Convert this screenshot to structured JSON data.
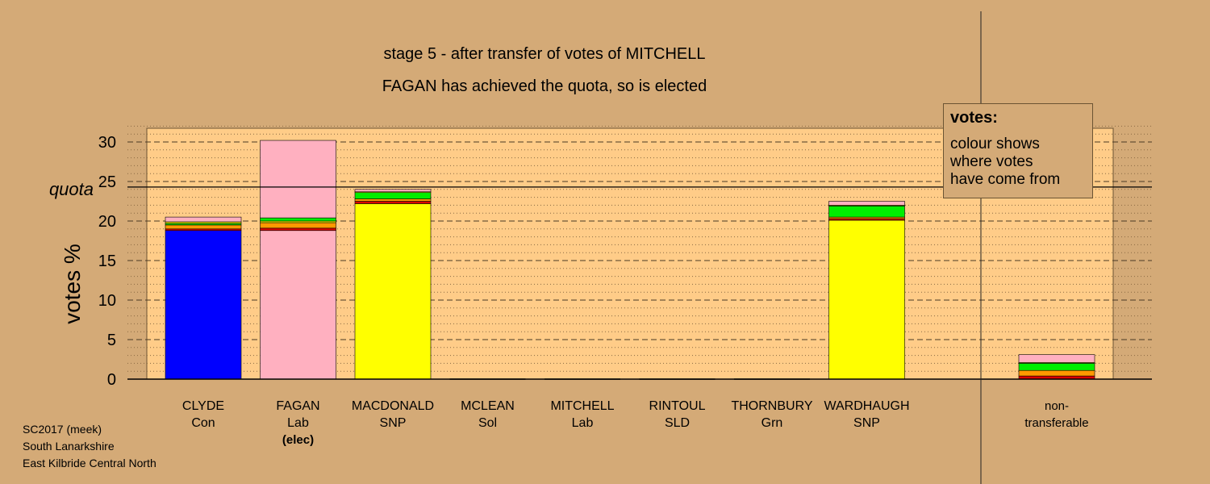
{
  "header": {
    "stage_line": "stage 5 - after transfer of votes of MITCHELL",
    "status_line": "FAGAN has achieved the quota, so is elected"
  },
  "legend": {
    "title": "votes:",
    "lines": [
      "colour shows",
      "where votes",
      "have come from"
    ]
  },
  "footer": {
    "lines": [
      "SC2017 (meek)",
      "South Lanarkshire",
      "East Kilbride Central North"
    ]
  },
  "chart_data": {
    "type": "bar",
    "stacked": true,
    "ylabel": "votes %",
    "ylim": [
      0,
      32
    ],
    "yticks": [
      0,
      5,
      10,
      15,
      20,
      25,
      30
    ],
    "quota": 24.3,
    "quota_label": "quota",
    "grid": true,
    "candidates": [
      {
        "name": "CLYDE",
        "party": "Con",
        "note": "",
        "segments": [
          {
            "color": "#0000ff",
            "value": 18.8
          },
          {
            "color": "#dd0000",
            "value": 0.2
          },
          {
            "color": "#ff9900",
            "value": 0.5
          },
          {
            "color": "#00ee00",
            "value": 0.2
          },
          {
            "color": "#ffff00",
            "value": 0.2
          },
          {
            "color": "#ffb0c0",
            "value": 0.6
          }
        ]
      },
      {
        "name": "FAGAN",
        "party": "Lab",
        "note": "(elec)",
        "segments": [
          {
            "color": "#ffb0c0",
            "value": 18.8
          },
          {
            "color": "#dd0000",
            "value": 0.3
          },
          {
            "color": "#ff9900",
            "value": 0.7
          },
          {
            "color": "#ffff00",
            "value": 0.2
          },
          {
            "color": "#00ee00",
            "value": 0.4
          },
          {
            "color": "#ffb0c0",
            "value": 9.8
          }
        ]
      },
      {
        "name": "MACDONALD",
        "party": "SNP",
        "note": "",
        "segments": [
          {
            "color": "#ffff00",
            "value": 22.2
          },
          {
            "color": "#dd0000",
            "value": 0.3
          },
          {
            "color": "#ff9900",
            "value": 0.3
          },
          {
            "color": "#00ee00",
            "value": 0.8
          },
          {
            "color": "#ffff00",
            "value": 0.1
          },
          {
            "color": "#ffb0c0",
            "value": 0.3
          }
        ]
      },
      {
        "name": "MCLEAN",
        "party": "Sol",
        "note": "",
        "segments": []
      },
      {
        "name": "MITCHELL",
        "party": "Lab",
        "note": "",
        "segments": []
      },
      {
        "name": "RINTOUL",
        "party": "SLD",
        "note": "",
        "segments": []
      },
      {
        "name": "THORNBURY",
        "party": "Grn",
        "note": "",
        "segments": []
      },
      {
        "name": "WARDHAUGH",
        "party": "SNP",
        "note": "",
        "segments": [
          {
            "color": "#ffff00",
            "value": 20.1
          },
          {
            "color": "#dd0000",
            "value": 0.2
          },
          {
            "color": "#ff9900",
            "value": 0.2
          },
          {
            "color": "#00ee00",
            "value": 1.4
          },
          {
            "color": "#ffff00",
            "value": 0.1
          },
          {
            "color": "#ffb0c0",
            "value": 0.5
          }
        ]
      }
    ],
    "nontransferable": {
      "label_lines": [
        "non-",
        "transferable"
      ],
      "segments": [
        {
          "color": "#dd0000",
          "value": 0.4
        },
        {
          "color": "#ff9900",
          "value": 0.7
        },
        {
          "color": "#00ee00",
          "value": 0.9
        },
        {
          "color": "#ffff00",
          "value": 0.1
        },
        {
          "color": "#ffb0c0",
          "value": 1.0
        }
      ]
    }
  }
}
